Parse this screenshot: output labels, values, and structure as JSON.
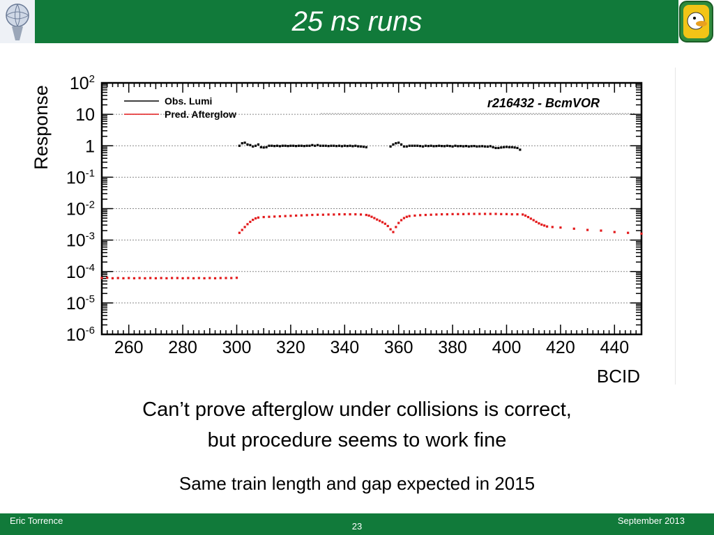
{
  "slide": {
    "title": "25 ns runs",
    "caption_line1": "Can’t prove afterglow under collisions is correct,",
    "caption_line2": "but procedure seems to work fine",
    "note": "Same train length and gap expected in 2015"
  },
  "footer": {
    "author": "Eric Torrence",
    "page": "23",
    "date": "September 2013"
  },
  "colors": {
    "header_green": "#117a3a",
    "obs_lumi": "#000000",
    "pred_afterglow": "#e31a1c"
  },
  "icons": {
    "left_logo": "atlas-logo-icon",
    "right_logo": "duck-mascot-logo-icon"
  },
  "chart_data": {
    "type": "scatter",
    "title": "r216432 - BcmVOR",
    "xlabel": "BCID",
    "ylabel": "Response",
    "xscale": "linear",
    "yscale": "log",
    "xlim": [
      250,
      450
    ],
    "ylim": [
      1e-06,
      100
    ],
    "grid": "horizontal dotted at decades",
    "legend_position": "top-left",
    "x_ticks": [
      260,
      280,
      300,
      320,
      340,
      360,
      380,
      400,
      420,
      440
    ],
    "y_ticks": [
      {
        "base": "10",
        "exp": "-6"
      },
      {
        "base": "10",
        "exp": "-5"
      },
      {
        "base": "10",
        "exp": "-4"
      },
      {
        "base": "10",
        "exp": "-3"
      },
      {
        "base": "10",
        "exp": "-2"
      },
      {
        "base": "10",
        "exp": "-1"
      },
      {
        "base": "1",
        "exp": ""
      },
      {
        "base": "10",
        "exp": ""
      },
      {
        "base": "10",
        "exp": "2"
      }
    ],
    "series": [
      {
        "name": "Obs. Lumi",
        "points": [
          [
            301,
            1.0
          ],
          [
            302,
            1.2
          ],
          [
            303,
            1.25
          ],
          [
            304,
            1.1
          ],
          [
            305,
            1.05
          ],
          [
            306,
            0.95
          ],
          [
            307,
            1.0
          ],
          [
            308,
            1.1
          ],
          [
            309,
            0.9
          ],
          [
            310,
            0.88
          ],
          [
            311,
            0.9
          ],
          [
            312,
            1.0
          ],
          [
            313,
            1.0
          ],
          [
            314,
            0.98
          ],
          [
            315,
            1.0
          ],
          [
            316,
            0.97
          ],
          [
            317,
            1.0
          ],
          [
            318,
            1.0
          ],
          [
            319,
            0.98
          ],
          [
            320,
            1.0
          ],
          [
            321,
            1.0
          ],
          [
            322,
            0.98
          ],
          [
            323,
            1.0
          ],
          [
            324,
            1.0
          ],
          [
            325,
            0.98
          ],
          [
            326,
            1.0
          ],
          [
            327,
            1.0
          ],
          [
            328,
            1.05
          ],
          [
            329,
            1.0
          ],
          [
            330,
            1.05
          ],
          [
            331,
            1.0
          ],
          [
            332,
            1.0
          ],
          [
            333,
            1.0
          ],
          [
            334,
            0.98
          ],
          [
            335,
            1.0
          ],
          [
            336,
            1.0
          ],
          [
            337,
            0.98
          ],
          [
            338,
            1.0
          ],
          [
            339,
            0.97
          ],
          [
            340,
            1.0
          ],
          [
            341,
            0.98
          ],
          [
            342,
            1.0
          ],
          [
            343,
            0.97
          ],
          [
            344,
            1.0
          ],
          [
            345,
            0.96
          ],
          [
            346,
            0.95
          ],
          [
            347,
            0.93
          ],
          [
            348,
            0.9
          ],
          [
            357,
            0.95
          ],
          [
            358,
            1.1
          ],
          [
            359,
            1.2
          ],
          [
            360,
            1.25
          ],
          [
            361,
            1.1
          ],
          [
            362,
            0.95
          ],
          [
            363,
            0.95
          ],
          [
            364,
            1.0
          ],
          [
            365,
            1.0
          ],
          [
            366,
            1.0
          ],
          [
            367,
            1.0
          ],
          [
            368,
            0.98
          ],
          [
            369,
            0.95
          ],
          [
            370,
            1.0
          ],
          [
            371,
            0.98
          ],
          [
            372,
            1.0
          ],
          [
            373,
            0.97
          ],
          [
            374,
            0.98
          ],
          [
            375,
            1.0
          ],
          [
            376,
            0.98
          ],
          [
            377,
            0.97
          ],
          [
            378,
            1.0
          ],
          [
            379,
            0.98
          ],
          [
            380,
            0.95
          ],
          [
            381,
            1.0
          ],
          [
            382,
            0.97
          ],
          [
            383,
            0.98
          ],
          [
            384,
            0.96
          ],
          [
            385,
            0.98
          ],
          [
            386,
            0.95
          ],
          [
            387,
            0.97
          ],
          [
            388,
            0.98
          ],
          [
            389,
            0.95
          ],
          [
            390,
            0.96
          ],
          [
            391,
            0.97
          ],
          [
            392,
            0.95
          ],
          [
            393,
            0.94
          ],
          [
            394,
            0.97
          ],
          [
            395,
            0.9
          ],
          [
            396,
            0.85
          ],
          [
            397,
            0.85
          ],
          [
            398,
            0.88
          ],
          [
            399,
            0.9
          ],
          [
            400,
            0.92
          ],
          [
            401,
            0.9
          ],
          [
            402,
            0.9
          ],
          [
            403,
            0.88
          ],
          [
            404,
            0.85
          ],
          [
            405,
            0.75
          ]
        ],
        "color": "#000000"
      },
      {
        "name": "Pred. Afterglow",
        "points": [
          [
            250,
            6.2e-05
          ],
          [
            252,
            6.3e-05
          ],
          [
            254,
            6.1e-05
          ],
          [
            256,
            6.2e-05
          ],
          [
            258,
            6.1e-05
          ],
          [
            260,
            6.2e-05
          ],
          [
            262,
            6.1e-05
          ],
          [
            264,
            6.2e-05
          ],
          [
            266,
            6.1e-05
          ],
          [
            268,
            6.2e-05
          ],
          [
            270,
            6.1e-05
          ],
          [
            272,
            6.2e-05
          ],
          [
            274,
            6.1e-05
          ],
          [
            276,
            6.2e-05
          ],
          [
            278,
            6.2e-05
          ],
          [
            280,
            6.1e-05
          ],
          [
            282,
            6.2e-05
          ],
          [
            284,
            6.1e-05
          ],
          [
            286,
            6.2e-05
          ],
          [
            288,
            6.1e-05
          ],
          [
            290,
            6.2e-05
          ],
          [
            292,
            6.1e-05
          ],
          [
            294,
            6.2e-05
          ],
          [
            296,
            6.2e-05
          ],
          [
            298,
            6.2e-05
          ],
          [
            300,
            6.3e-05
          ],
          [
            301,
            0.0017
          ],
          [
            302,
            0.0021
          ],
          [
            303,
            0.0026
          ],
          [
            304,
            0.0032
          ],
          [
            305,
            0.0038
          ],
          [
            306,
            0.0044
          ],
          [
            307,
            0.0049
          ],
          [
            308,
            0.0052
          ],
          [
            310,
            0.0054
          ],
          [
            312,
            0.0055
          ],
          [
            314,
            0.0056
          ],
          [
            316,
            0.0057
          ],
          [
            318,
            0.0058
          ],
          [
            320,
            0.0059
          ],
          [
            322,
            0.006
          ],
          [
            324,
            0.0061
          ],
          [
            326,
            0.0062
          ],
          [
            328,
            0.0063
          ],
          [
            330,
            0.0064
          ],
          [
            332,
            0.0064
          ],
          [
            334,
            0.0065
          ],
          [
            336,
            0.0065
          ],
          [
            338,
            0.0066
          ],
          [
            340,
            0.0066
          ],
          [
            342,
            0.0066
          ],
          [
            344,
            0.0066
          ],
          [
            346,
            0.0065
          ],
          [
            348,
            0.0063
          ],
          [
            349,
            0.006
          ],
          [
            350,
            0.0055
          ],
          [
            351,
            0.005
          ],
          [
            352,
            0.0045
          ],
          [
            353,
            0.0041
          ],
          [
            354,
            0.0037
          ],
          [
            355,
            0.0033
          ],
          [
            356,
            0.0028
          ],
          [
            357,
            0.0022
          ],
          [
            358,
            0.0018
          ],
          [
            359,
            0.0026
          ],
          [
            360,
            0.0035
          ],
          [
            361,
            0.0043
          ],
          [
            362,
            0.005
          ],
          [
            363,
            0.0055
          ],
          [
            364,
            0.0058
          ],
          [
            366,
            0.006
          ],
          [
            368,
            0.0062
          ],
          [
            370,
            0.0063
          ],
          [
            372,
            0.0064
          ],
          [
            374,
            0.0065
          ],
          [
            376,
            0.0066
          ],
          [
            378,
            0.0066
          ],
          [
            380,
            0.0067
          ],
          [
            382,
            0.0067
          ],
          [
            384,
            0.0067
          ],
          [
            386,
            0.0068
          ],
          [
            388,
            0.0068
          ],
          [
            390,
            0.0068
          ],
          [
            392,
            0.0068
          ],
          [
            394,
            0.0068
          ],
          [
            396,
            0.0068
          ],
          [
            398,
            0.0067
          ],
          [
            400,
            0.0067
          ],
          [
            402,
            0.0066
          ],
          [
            404,
            0.0066
          ],
          [
            406,
            0.0065
          ],
          [
            407,
            0.006
          ],
          [
            408,
            0.0054
          ],
          [
            409,
            0.0048
          ],
          [
            410,
            0.0043
          ],
          [
            411,
            0.0038
          ],
          [
            412,
            0.0034
          ],
          [
            413,
            0.0031
          ],
          [
            414,
            0.0029
          ],
          [
            415,
            0.0027
          ],
          [
            417,
            0.0026
          ],
          [
            420,
            0.0025
          ],
          [
            425,
            0.0023
          ],
          [
            430,
            0.0021
          ],
          [
            435,
            0.002
          ],
          [
            440,
            0.0018
          ],
          [
            445,
            0.0017
          ],
          [
            450,
            0.0016
          ]
        ],
        "color": "#e31a1c"
      }
    ]
  }
}
